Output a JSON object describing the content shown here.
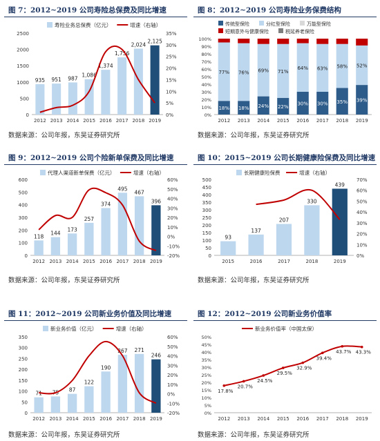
{
  "charts": [
    {
      "title": "图 7：2012~2019 公司寿险总保费及同比增速",
      "source": "数据来源：公司年报，东吴证券研究所",
      "chart_data": {
        "type": "bar",
        "categories": [
          "2012",
          "2013",
          "2014",
          "2015",
          "2016",
          "2017",
          "2018",
          "2019"
        ],
        "series": [
          {
            "name": "寿险业务总保费（亿元）",
            "values": [
              935,
              951,
              987,
              1086,
              1374,
              1756,
              2024,
              2125
            ],
            "axis": "left"
          },
          {
            "name": "增速（右轴）",
            "type": "line",
            "values": [
              1,
              3,
              4,
              10,
              27,
              28,
              15,
              5
            ],
            "axis": "right"
          }
        ],
        "labels": [
          "935",
          "951",
          "987",
          "1,086",
          "1,374",
          "1,756",
          "2,024",
          "2,125"
        ],
        "ylim": [
          0,
          2500
        ],
        "yticks": [
          0,
          500,
          1000,
          1500,
          2000,
          2500
        ],
        "y2lim": [
          0,
          35
        ],
        "y2ticks": [
          0,
          5,
          10,
          15,
          20,
          25,
          30,
          35
        ],
        "y2suffix": "%",
        "highlight_last": true,
        "legend_position": "top"
      }
    },
    {
      "title": "图 8：2012~2019 公司寿险业务保费结构",
      "source": "数据来源：公司年报，东吴证券研究所",
      "chart_data": {
        "type": "stacked_bar",
        "categories": [
          "2012",
          "2013",
          "2014",
          "2015",
          "2016",
          "2017",
          "2018",
          "2019"
        ],
        "series": [
          {
            "name": "传统型保险",
            "values": [
              18,
              18,
              24,
              22,
              30,
              30,
              35,
              39
            ],
            "color": "#2e5c8a",
            "labels": [
              "18%",
              "18%",
              "24%",
              "22%",
              "30%",
              "30%",
              "35%",
              "39%"
            ]
          },
          {
            "name": "分红型保险",
            "values": [
              77,
              76,
              69,
              71,
              64,
              63,
              58,
              52
            ],
            "color": "#bdd7ee",
            "labels": [
              "77%",
              "76%",
              "69%",
              "71%",
              "64%",
              "63%",
              "58%",
              "52%"
            ]
          },
          {
            "name": "万能型保险",
            "values": [
              0,
              0,
              0,
              0,
              0,
              0,
              0,
              0
            ],
            "color": "#d9d9d9"
          },
          {
            "name": "短期意外与健康保险",
            "values": [
              5,
              6,
              7,
              7,
              6,
              7,
              7,
              9
            ],
            "color": "#c00000"
          },
          {
            "name": "税延养老保险",
            "values": [
              0,
              0,
              0,
              0,
              0,
              0,
              0,
              0
            ],
            "color": "#7f7f7f"
          }
        ],
        "ylim": [
          0,
          100
        ],
        "yticks": [
          0,
          10,
          20,
          30,
          40,
          50,
          60,
          70,
          80,
          90,
          100
        ],
        "ysuffix": "%",
        "legend_position": "top"
      }
    },
    {
      "title": "图 9：2012~2019 公司个险新单保费及同比增速",
      "source": "数据来源：公司年报，东吴证券研究所",
      "chart_data": {
        "type": "bar",
        "categories": [
          "2012",
          "2013",
          "2014",
          "2015",
          "2016",
          "2017",
          "2018",
          "2019"
        ],
        "series": [
          {
            "name": "代理人渠道新单保费（亿元）",
            "values": [
              118,
              144,
              173,
              257,
              374,
              495,
              467,
              396
            ],
            "axis": "left"
          },
          {
            "name": "增速（右轴）",
            "type": "line",
            "values": [
              7,
              22,
              20,
              49,
              46,
              33,
              -5,
              -15
            ],
            "axis": "right"
          }
        ],
        "labels": [
          "118",
          "144",
          "173",
          "257",
          "374",
          "495",
          "467",
          "396"
        ],
        "ylim": [
          0,
          600
        ],
        "yticks": [
          0,
          100,
          200,
          300,
          400,
          500,
          600
        ],
        "y2lim": [
          -20,
          60
        ],
        "y2ticks": [
          -20,
          -10,
          0,
          10,
          20,
          30,
          40,
          50,
          60
        ],
        "y2suffix": "%",
        "highlight_last": true,
        "legend_position": "top"
      }
    },
    {
      "title": "图 10：2015~2019 公司长期健康险保费及同比增速",
      "source": "数据来源：公司年报，东吴证券研究所",
      "chart_data": {
        "type": "bar",
        "categories": [
          "2015",
          "2016",
          "2017",
          "2018",
          "2019"
        ],
        "series": [
          {
            "name": "长期健康险保费",
            "values": [
              93,
              137,
              207,
              330,
              439
            ],
            "axis": "left"
          },
          {
            "name": "增速（右轴）",
            "type": "line",
            "values": [
              null,
              47,
              51,
              60,
              33
            ],
            "axis": "right"
          }
        ],
        "labels": [
          "93",
          "137",
          "207",
          "330",
          "439"
        ],
        "ylim": [
          0,
          500
        ],
        "yticks": [
          0,
          50,
          100,
          150,
          200,
          250,
          300,
          350,
          400,
          450,
          500
        ],
        "y2lim": [
          0,
          70
        ],
        "y2ticks": [
          0,
          10,
          20,
          30,
          40,
          50,
          60,
          70
        ],
        "y2suffix": "%",
        "highlight_last": true,
        "legend_position": "top"
      }
    },
    {
      "title": "图 11：2012~2019 公司新业务价值及同比增速",
      "source": "数据来源：公司年报，东吴证券研究所",
      "chart_data": {
        "type": "bar",
        "categories": [
          "2012",
          "2013",
          "2014",
          "2015",
          "2016",
          "2017",
          "2018",
          "2019"
        ],
        "series": [
          {
            "name": "新业务价值（亿元）",
            "values": [
              71,
              75,
              87,
              122,
              190,
              267,
              271,
              246
            ],
            "axis": "left"
          },
          {
            "name": "增速（右轴）",
            "type": "line",
            "values": [
              1,
              1,
              14,
              40,
              55,
              40,
              1,
              -10
            ],
            "axis": "right"
          }
        ],
        "labels": [
          "71",
          "75",
          "87",
          "122",
          "190",
          "267",
          "271",
          "246"
        ],
        "ylim": [
          0,
          350
        ],
        "yticks": [
          0,
          50,
          100,
          150,
          200,
          250,
          300,
          350
        ],
        "y2lim": [
          -20,
          60
        ],
        "y2ticks": [
          -20,
          -10,
          0,
          10,
          20,
          30,
          40,
          50,
          60
        ],
        "y2suffix": "%",
        "highlight_last": true,
        "legend_position": "top"
      }
    },
    {
      "title": "图 12：2012~2019 公司新业务价值率",
      "source": "数据来源：公司年报，东吴证券研究所",
      "chart_data": {
        "type": "line",
        "categories": [
          "2012",
          "2013",
          "2014",
          "2015",
          "2016",
          "2017",
          "2018",
          "2019"
        ],
        "series": [
          {
            "name": "新业务价值率（中国太保）",
            "values": [
              17.8,
              20.7,
              24.5,
              29.5,
              32.9,
              39.4,
              43.7,
              43.3
            ],
            "labels": [
              "17.8%",
              "20.7%",
              "24.5%",
              "29.5%",
              "32.9%",
              "39.4%",
              "43.7%",
              "43.3%"
            ]
          }
        ],
        "ylim": [
          0,
          50
        ],
        "yticks": [
          0,
          5,
          10,
          15,
          20,
          25,
          30,
          35,
          40,
          45,
          50
        ],
        "ysuffix": "%",
        "legend_position": "top"
      }
    }
  ],
  "colors": {
    "bar": "#bdd7ee",
    "bar_highlight": "#1f4e79",
    "line": "#c00000",
    "title": "#1f3864"
  }
}
